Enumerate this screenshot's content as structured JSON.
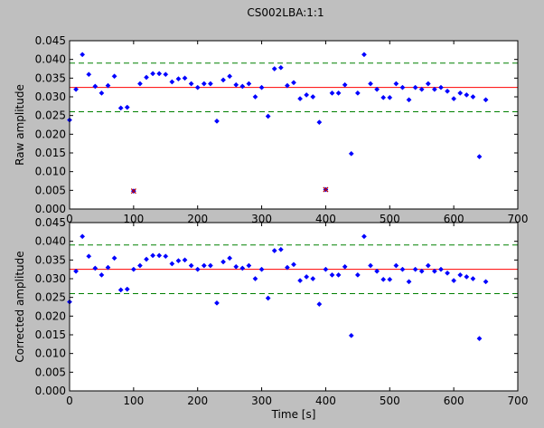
{
  "figure": {
    "title": "CS002LBA:1:1",
    "background": "#bfbfbf",
    "axes_facecolor": "#ffffff"
  },
  "styles": {
    "point_color": "#0000ff",
    "flag_color": "#bf0000",
    "mean_color": "#ff0000",
    "band_color": "#008000"
  },
  "chart_data": [
    {
      "id": "raw",
      "type": "scatter",
      "title": "",
      "xlabel": "",
      "ylabel": "Raw amplitude",
      "xlim": [
        0,
        700
      ],
      "ylim": [
        0,
        0.045
      ],
      "xticks": [
        "0",
        "100",
        "200",
        "300",
        "400",
        "500",
        "600",
        "700"
      ],
      "yticks": [
        "0.000",
        "0.005",
        "0.010",
        "0.015",
        "0.020",
        "0.025",
        "0.030",
        "0.035",
        "0.040",
        "0.045"
      ],
      "grid": false,
      "mean": 0.0325,
      "band": [
        0.026,
        0.039
      ],
      "x": [
        0,
        10,
        20,
        30,
        40,
        50,
        60,
        70,
        80,
        90,
        100,
        110,
        120,
        130,
        140,
        150,
        160,
        170,
        180,
        190,
        200,
        210,
        220,
        230,
        240,
        250,
        260,
        270,
        280,
        290,
        300,
        310,
        320,
        330,
        340,
        350,
        360,
        370,
        380,
        390,
        400,
        410,
        420,
        430,
        440,
        450,
        460,
        470,
        480,
        490,
        500,
        510,
        520,
        530,
        540,
        550,
        560,
        570,
        580,
        590,
        600,
        610,
        620,
        630,
        640,
        650
      ],
      "y": [
        0.0238,
        0.032,
        0.0413,
        0.036,
        0.0328,
        0.031,
        0.033,
        0.0355,
        0.027,
        0.0272,
        0.0048,
        0.0335,
        0.0352,
        0.0362,
        0.0362,
        0.036,
        0.034,
        0.0348,
        0.035,
        0.0335,
        0.0325,
        0.0335,
        0.0335,
        0.0235,
        0.0345,
        0.0355,
        0.0332,
        0.0328,
        0.0335,
        0.03,
        0.0325,
        0.0248,
        0.0375,
        0.0378,
        0.033,
        0.0338,
        0.0295,
        0.0305,
        0.03,
        0.0232,
        0.0052,
        0.031,
        0.031,
        0.0332,
        0.0148,
        0.031,
        0.0413,
        0.0335,
        0.032,
        0.0298,
        0.0298,
        0.0335,
        0.0325,
        0.0292,
        0.0325,
        0.032,
        0.0335,
        0.032,
        0.0325,
        0.0315,
        0.0295,
        0.031,
        0.0305,
        0.03,
        0.014,
        0.0292
      ],
      "flagged": [
        10,
        40
      ]
    },
    {
      "id": "corrected",
      "type": "scatter",
      "title": "",
      "xlabel": "Time [s]",
      "ylabel": "Corrected amplitude",
      "xlim": [
        0,
        700
      ],
      "ylim": [
        0,
        0.045
      ],
      "xticks": [
        "0",
        "100",
        "200",
        "300",
        "400",
        "500",
        "600",
        "700"
      ],
      "yticks": [
        "0.000",
        "0.005",
        "0.010",
        "0.015",
        "0.020",
        "0.025",
        "0.030",
        "0.035",
        "0.040",
        "0.045"
      ],
      "grid": false,
      "mean": 0.0325,
      "band": [
        0.026,
        0.039
      ],
      "x": [
        0,
        10,
        20,
        30,
        40,
        50,
        60,
        70,
        80,
        90,
        100,
        110,
        120,
        130,
        140,
        150,
        160,
        170,
        180,
        190,
        200,
        210,
        220,
        230,
        240,
        250,
        260,
        270,
        280,
        290,
        300,
        310,
        320,
        330,
        340,
        350,
        360,
        370,
        380,
        390,
        400,
        410,
        420,
        430,
        440,
        450,
        460,
        470,
        480,
        490,
        500,
        510,
        520,
        530,
        540,
        550,
        560,
        570,
        580,
        590,
        600,
        610,
        620,
        630,
        640,
        650
      ],
      "y": [
        0.0238,
        0.032,
        0.0413,
        0.036,
        0.0328,
        0.031,
        0.033,
        0.0355,
        0.027,
        0.0272,
        0.0325,
        0.0335,
        0.0352,
        0.0362,
        0.0362,
        0.036,
        0.034,
        0.0348,
        0.035,
        0.0335,
        0.0325,
        0.0335,
        0.0335,
        0.0235,
        0.0345,
        0.0355,
        0.0332,
        0.0328,
        0.0335,
        0.03,
        0.0325,
        0.0248,
        0.0375,
        0.0378,
        0.033,
        0.0338,
        0.0295,
        0.0305,
        0.03,
        0.0232,
        0.0325,
        0.031,
        0.031,
        0.0332,
        0.0148,
        0.031,
        0.0413,
        0.0335,
        0.032,
        0.0298,
        0.0298,
        0.0335,
        0.0325,
        0.0292,
        0.0325,
        0.032,
        0.0335,
        0.032,
        0.0325,
        0.0315,
        0.0295,
        0.031,
        0.0305,
        0.03,
        0.014,
        0.0292
      ],
      "flagged": []
    }
  ]
}
